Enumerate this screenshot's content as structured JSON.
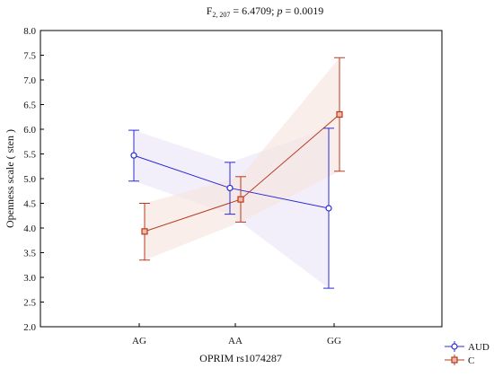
{
  "chart_data": {
    "type": "line",
    "title": {
      "f_symbol": "F",
      "f_subscript": "2, 207",
      "f_value_text": " = 6.4709; ",
      "p_symbol": "p",
      "p_value_text": " = 0.0019"
    },
    "xlabel": "OPRIM rs1074287",
    "ylabel": "Openness scale ( sten )",
    "categories": [
      "AG",
      "AA",
      "GG"
    ],
    "ylim": [
      2.0,
      8.0
    ],
    "yticks": [
      "2.0",
      "2.5",
      "3.0",
      "3.5",
      "4.0",
      "4.5",
      "5.0",
      "5.5",
      "6.0",
      "6.5",
      "7.0",
      "7.5",
      "8.0"
    ],
    "grid": false,
    "legend_position": "bottom-right",
    "series": [
      {
        "name": "AUD",
        "marker": "circle",
        "color": "#2b2bd6",
        "band_color": "#e9e4f7",
        "values": [
          5.47,
          4.81,
          4.4
        ],
        "err_low": [
          4.95,
          4.28,
          2.78
        ],
        "err_high": [
          5.98,
          5.33,
          6.02
        ]
      },
      {
        "name": "C",
        "marker": "square",
        "color": "#b83a1e",
        "band_color": "#f6e2de",
        "values": [
          3.93,
          4.58,
          6.3
        ],
        "err_low": [
          3.35,
          4.12,
          5.15
        ],
        "err_high": [
          4.5,
          5.04,
          7.45
        ]
      }
    ]
  }
}
